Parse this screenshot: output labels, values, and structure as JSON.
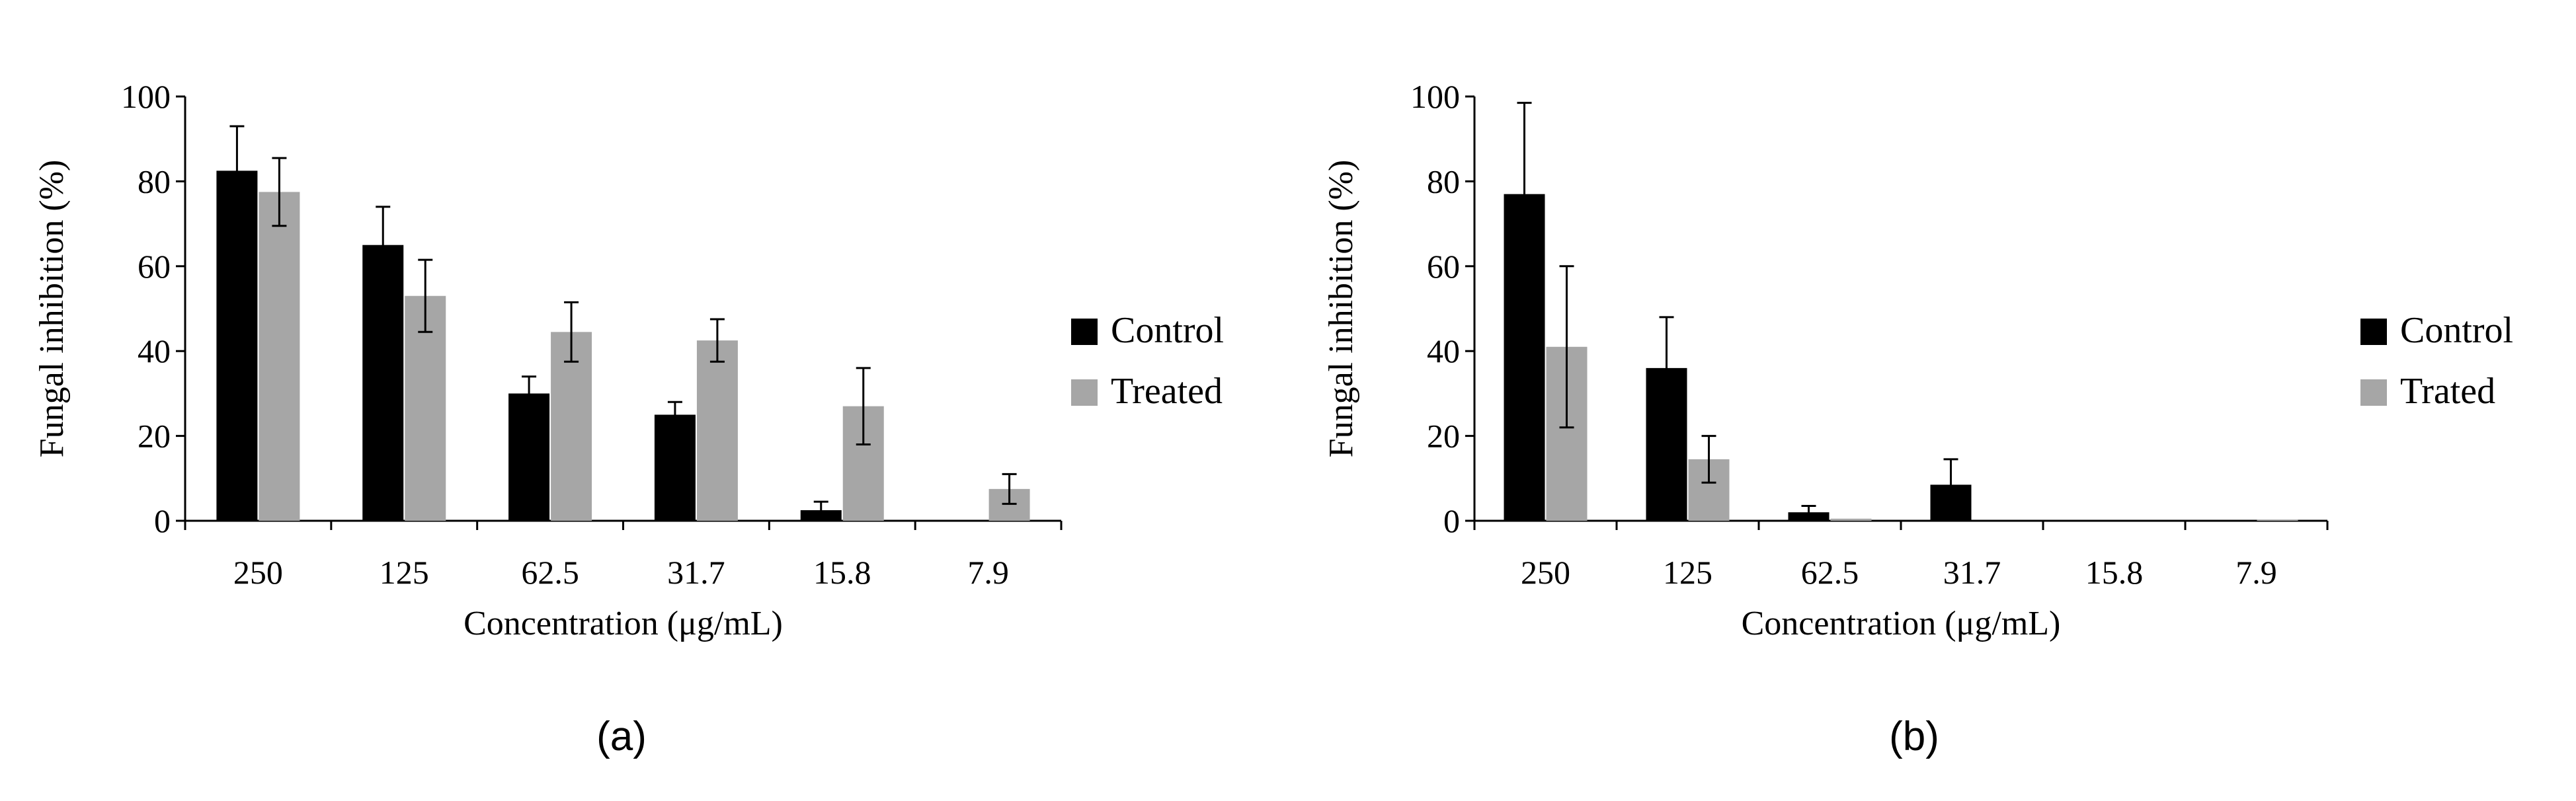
{
  "colors": {
    "control": "#000000",
    "treated": "#a6a6a6",
    "axis": "#000000",
    "errorbar": "#000000"
  },
  "chart_data": [
    {
      "type": "bar",
      "panel_label": "(a)",
      "categories": [
        "250",
        "125",
        "62.5",
        "31.7",
        "15.8",
        "7.9"
      ],
      "series": [
        {
          "name": "Control",
          "values": [
            82.5,
            65,
            30,
            25,
            2.5,
            0
          ],
          "errors": [
            10.5,
            9,
            4,
            3,
            2,
            0
          ]
        },
        {
          "name": "Treated",
          "values": [
            77.5,
            53,
            44.5,
            42.5,
            27,
            7.5
          ],
          "errors": [
            8,
            8.5,
            7,
            5,
            9,
            3.5
          ]
        }
      ],
      "xlabel": "Concentration (μg/mL)",
      "ylabel": "Fungal inhibition (%)",
      "ylim": [
        0,
        100
      ],
      "yticks": [
        "0",
        "20",
        "40",
        "60",
        "80",
        "100"
      ],
      "grid": false,
      "legend": "right"
    },
    {
      "type": "bar",
      "panel_label": "(b)",
      "categories": [
        "250",
        "125",
        "62.5",
        "31.7",
        "15.8",
        "7.9"
      ],
      "series": [
        {
          "name": "Control",
          "values": [
            77,
            36,
            2,
            8.5,
            0,
            0
          ],
          "errors": [
            21.5,
            12,
            1.5,
            6,
            0,
            0
          ]
        },
        {
          "name": "Trated",
          "values": [
            41,
            14.5,
            0.5,
            0,
            0,
            0.3
          ],
          "errors": [
            19,
            5.5,
            0,
            0,
            0,
            0
          ]
        }
      ],
      "xlabel": "Concentration (μg/mL)",
      "ylabel": "Fungal inhibition (%)",
      "ylim": [
        0,
        100
      ],
      "yticks": [
        "0",
        "20",
        "40",
        "60",
        "80",
        "100"
      ],
      "grid": false,
      "legend": "right"
    }
  ]
}
